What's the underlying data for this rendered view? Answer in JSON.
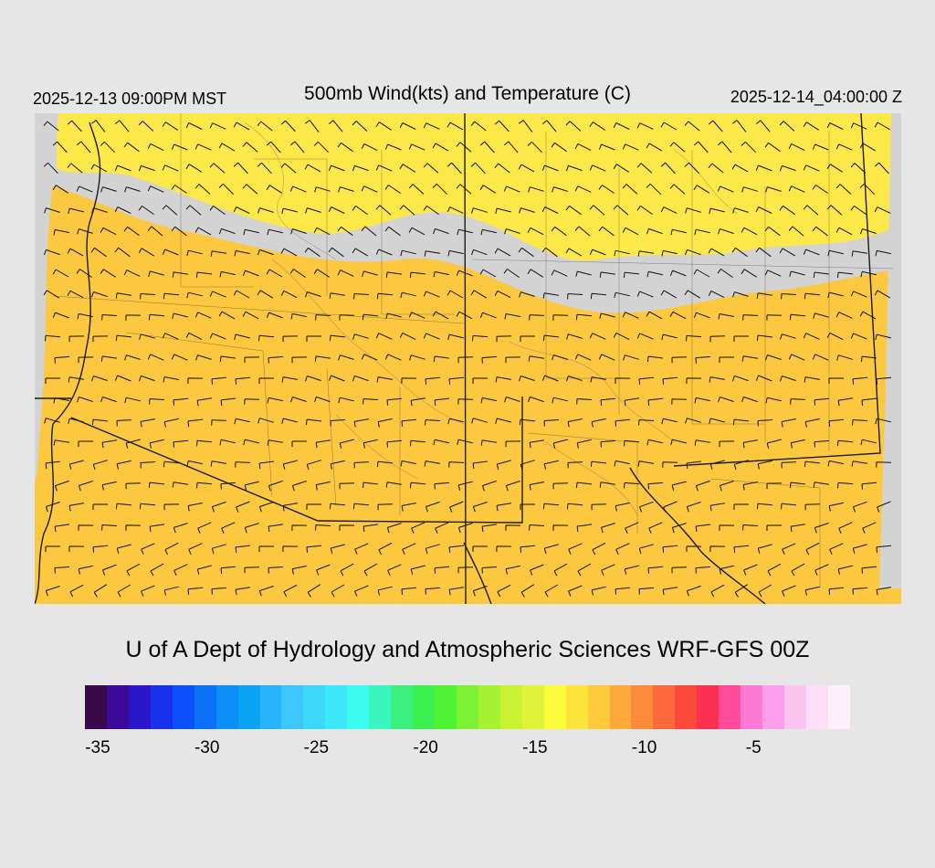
{
  "header": {
    "valid_local": "2025-12-13 09:00PM MST",
    "title": "500mb Wind(kts) and Temperature (C)",
    "valid_utc": "2025-12-14_04:00:00 Z"
  },
  "credit": "U of A Dept of Hydrology and Atmospheric Sciences WRF-GFS 00Z",
  "legend": {
    "colors": [
      "#3a0a48",
      "#3c0a9a",
      "#2a18c8",
      "#1832ec",
      "#0b50fa",
      "#0b72f8",
      "#0b8ef6",
      "#0ba4f4",
      "#27b4fa",
      "#3cc6fc",
      "#3cd8fc",
      "#3ce8fc",
      "#3cfcf0",
      "#3cf6c0",
      "#3cf080",
      "#3cf050",
      "#4ef432",
      "#7cf232",
      "#a6f232",
      "#c8f232",
      "#e0f23a",
      "#fcfc3a",
      "#fce43a",
      "#fcca3a",
      "#fcaa3a",
      "#fc8a3a",
      "#fc683a",
      "#fc4a3a",
      "#fc3050",
      "#fc4c9a",
      "#fc7ad4",
      "#fca0ec",
      "#fcc4f0",
      "#fcdef6",
      "#fcf0fa"
    ],
    "ticks": [
      "-35",
      "-30",
      "-25",
      "-20",
      "-15",
      "-10",
      "-5"
    ]
  },
  "map_colors": {
    "background": "#d3d3d3",
    "temp_minus_15": "#fde84a",
    "temp_minus_13": "#fcc840",
    "temp_minus_11": "#fba03e",
    "temp_minus_9": "#fb7c3c",
    "temp_minus_8": "#fb6a3a",
    "temp_minus_7": "#fb4a42"
  }
}
